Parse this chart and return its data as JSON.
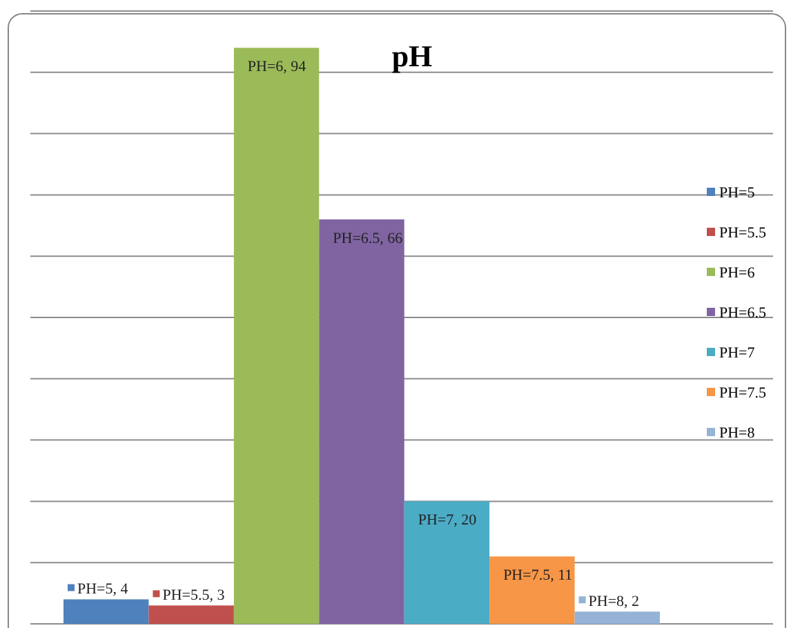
{
  "chart_data": {
    "type": "bar",
    "title": "pH",
    "categories": [
      null
    ],
    "series": [
      {
        "name": "PH=5",
        "color": "#4f81bd",
        "values": [
          4
        ],
        "value_labels": [
          "PH=5, 4"
        ]
      },
      {
        "name": "PH=5.5",
        "color": "#c0504d",
        "values": [
          3
        ],
        "value_labels": [
          "PH=5.5, 3"
        ]
      },
      {
        "name": "PH=6",
        "color": "#9bbb59",
        "values": [
          94
        ],
        "value_labels": [
          "PH=6, 94"
        ]
      },
      {
        "name": "PH=6.5",
        "color": "#8064a2",
        "values": [
          66
        ],
        "value_labels": [
          "PH=6.5, 66"
        ]
      },
      {
        "name": "PH=7",
        "color": "#4bacc6",
        "values": [
          20
        ],
        "value_labels": [
          "PH=7, 20"
        ]
      },
      {
        "name": "PH=7.5",
        "color": "#f79646",
        "values": [
          11
        ],
        "value_labels": [
          "PH=7.5, 11"
        ]
      },
      {
        "name": "PH=8",
        "color": "#95b3d7",
        "values": [
          2
        ],
        "value_labels": [
          "PH=8, 2"
        ]
      }
    ],
    "ylim": [
      0,
      100
    ],
    "yticks": [
      {
        "value": 0,
        "label": null
      },
      {
        "value": 10,
        "label": null
      },
      {
        "value": 20,
        "label": null
      },
      {
        "value": 30,
        "label": null
      },
      {
        "value": 40,
        "label": null
      },
      {
        "value": 50,
        "label": null
      },
      {
        "value": 60,
        "label": null
      },
      {
        "value": 70,
        "label": null
      },
      {
        "value": 80,
        "label": null
      },
      {
        "value": 90,
        "label": null
      },
      {
        "value": 100,
        "label": null
      }
    ],
    "grid": "y",
    "legend": "right"
  }
}
